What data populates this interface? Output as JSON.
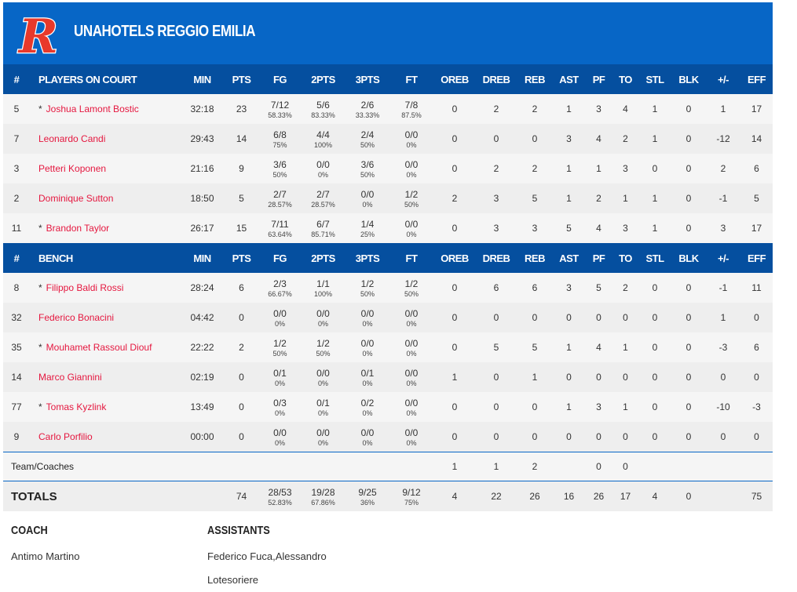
{
  "header": {
    "team_name": "UNAHOTELS REGGIO EMILIA",
    "logo_text": "R",
    "accent": "#0766c6",
    "header_bg": "#054f9f",
    "name_color": "#e5173f"
  },
  "columns": [
    "#",
    "PLAYERS ON COURT",
    "MIN",
    "PTS",
    "FG",
    "2PTS",
    "3PTS",
    "FT",
    "OREB",
    "DREB",
    "REB",
    "AST",
    "PF",
    "TO",
    "STL",
    "BLK",
    "+/-",
    "EFF"
  ],
  "bench_columns": [
    "#",
    "BENCH",
    "MIN",
    "PTS",
    "FG",
    "2PTS",
    "3PTS",
    "FT",
    "OREB",
    "DREB",
    "REB",
    "AST",
    "PF",
    "TO",
    "STL",
    "BLK",
    "+/-",
    "EFF"
  ],
  "starters": [
    {
      "num": "5",
      "starter": true,
      "name": "Joshua Lamont Bostic",
      "min": "32:18",
      "pts": "23",
      "fg": "7/12",
      "fg_pct": "58.33%",
      "p2": "5/6",
      "p2_pct": "83.33%",
      "p3": "2/6",
      "p3_pct": "33.33%",
      "ft": "7/8",
      "ft_pct": "87.5%",
      "oreb": "0",
      "dreb": "2",
      "reb": "2",
      "ast": "1",
      "pf": "3",
      "to": "4",
      "stl": "1",
      "blk": "0",
      "pm": "1",
      "eff": "17"
    },
    {
      "num": "7",
      "starter": false,
      "name": "Leonardo Candi",
      "min": "29:43",
      "pts": "14",
      "fg": "6/8",
      "fg_pct": "75%",
      "p2": "4/4",
      "p2_pct": "100%",
      "p3": "2/4",
      "p3_pct": "50%",
      "ft": "0/0",
      "ft_pct": "0%",
      "oreb": "0",
      "dreb": "0",
      "reb": "0",
      "ast": "3",
      "pf": "4",
      "to": "2",
      "stl": "1",
      "blk": "0",
      "pm": "-12",
      "eff": "14"
    },
    {
      "num": "3",
      "starter": false,
      "name": "Petteri Koponen",
      "min": "21:16",
      "pts": "9",
      "fg": "3/6",
      "fg_pct": "50%",
      "p2": "0/0",
      "p2_pct": "0%",
      "p3": "3/6",
      "p3_pct": "50%",
      "ft": "0/0",
      "ft_pct": "0%",
      "oreb": "0",
      "dreb": "2",
      "reb": "2",
      "ast": "1",
      "pf": "1",
      "to": "3",
      "stl": "0",
      "blk": "0",
      "pm": "2",
      "eff": "6"
    },
    {
      "num": "2",
      "starter": false,
      "name": "Dominique Sutton",
      "min": "18:50",
      "pts": "5",
      "fg": "2/7",
      "fg_pct": "28.57%",
      "p2": "2/7",
      "p2_pct": "28.57%",
      "p3": "0/0",
      "p3_pct": "0%",
      "ft": "1/2",
      "ft_pct": "50%",
      "oreb": "2",
      "dreb": "3",
      "reb": "5",
      "ast": "1",
      "pf": "2",
      "to": "1",
      "stl": "1",
      "blk": "0",
      "pm": "-1",
      "eff": "5"
    },
    {
      "num": "11",
      "starter": true,
      "name": "Brandon Taylor",
      "min": "26:17",
      "pts": "15",
      "fg": "7/11",
      "fg_pct": "63.64%",
      "p2": "6/7",
      "p2_pct": "85.71%",
      "p3": "1/4",
      "p3_pct": "25%",
      "ft": "0/0",
      "ft_pct": "0%",
      "oreb": "0",
      "dreb": "3",
      "reb": "3",
      "ast": "5",
      "pf": "4",
      "to": "3",
      "stl": "1",
      "blk": "0",
      "pm": "3",
      "eff": "17"
    }
  ],
  "bench": [
    {
      "num": "8",
      "starter": true,
      "name": "Filippo Baldi Rossi",
      "min": "28:24",
      "pts": "6",
      "fg": "2/3",
      "fg_pct": "66.67%",
      "p2": "1/1",
      "p2_pct": "100%",
      "p3": "1/2",
      "p3_pct": "50%",
      "ft": "1/2",
      "ft_pct": "50%",
      "oreb": "0",
      "dreb": "6",
      "reb": "6",
      "ast": "3",
      "pf": "5",
      "to": "2",
      "stl": "0",
      "blk": "0",
      "pm": "-1",
      "eff": "11"
    },
    {
      "num": "32",
      "starter": false,
      "name": "Federico Bonacini",
      "min": "04:42",
      "pts": "0",
      "fg": "0/0",
      "fg_pct": "0%",
      "p2": "0/0",
      "p2_pct": "0%",
      "p3": "0/0",
      "p3_pct": "0%",
      "ft": "0/0",
      "ft_pct": "0%",
      "oreb": "0",
      "dreb": "0",
      "reb": "0",
      "ast": "0",
      "pf": "0",
      "to": "0",
      "stl": "0",
      "blk": "0",
      "pm": "1",
      "eff": "0"
    },
    {
      "num": "35",
      "starter": true,
      "name": "Mouhamet Rassoul Diouf",
      "min": "22:22",
      "pts": "2",
      "fg": "1/2",
      "fg_pct": "50%",
      "p2": "1/2",
      "p2_pct": "50%",
      "p3": "0/0",
      "p3_pct": "0%",
      "ft": "0/0",
      "ft_pct": "0%",
      "oreb": "0",
      "dreb": "5",
      "reb": "5",
      "ast": "1",
      "pf": "4",
      "to": "1",
      "stl": "0",
      "blk": "0",
      "pm": "-3",
      "eff": "6"
    },
    {
      "num": "14",
      "starter": false,
      "name": "Marco Giannini",
      "min": "02:19",
      "pts": "0",
      "fg": "0/1",
      "fg_pct": "0%",
      "p2": "0/0",
      "p2_pct": "0%",
      "p3": "0/1",
      "p3_pct": "0%",
      "ft": "0/0",
      "ft_pct": "0%",
      "oreb": "1",
      "dreb": "0",
      "reb": "1",
      "ast": "0",
      "pf": "0",
      "to": "0",
      "stl": "0",
      "blk": "0",
      "pm": "0",
      "eff": "0"
    },
    {
      "num": "77",
      "starter": true,
      "name": "Tomas Kyzlink",
      "min": "13:49",
      "pts": "0",
      "fg": "0/3",
      "fg_pct": "0%",
      "p2": "0/1",
      "p2_pct": "0%",
      "p3": "0/2",
      "p3_pct": "0%",
      "ft": "0/0",
      "ft_pct": "0%",
      "oreb": "0",
      "dreb": "0",
      "reb": "0",
      "ast": "1",
      "pf": "3",
      "to": "1",
      "stl": "0",
      "blk": "0",
      "pm": "-10",
      "eff": "-3"
    },
    {
      "num": "9",
      "starter": false,
      "name": "Carlo Porfilio",
      "min": "00:00",
      "pts": "0",
      "fg": "0/0",
      "fg_pct": "0%",
      "p2": "0/0",
      "p2_pct": "0%",
      "p3": "0/0",
      "p3_pct": "0%",
      "ft": "0/0",
      "ft_pct": "0%",
      "oreb": "0",
      "dreb": "0",
      "reb": "0",
      "ast": "0",
      "pf": "0",
      "to": "0",
      "stl": "0",
      "blk": "0",
      "pm": "0",
      "eff": "0"
    }
  ],
  "team_row": {
    "label": "Team/Coaches",
    "oreb": "1",
    "dreb": "1",
    "reb": "2",
    "ast": "",
    "pf": "0",
    "to": "0",
    "stl": "",
    "blk": "",
    "pm": "",
    "eff": ""
  },
  "totals": {
    "label": "TOTALS",
    "min": "",
    "pts": "74",
    "fg": "28/53",
    "fg_pct": "52.83%",
    "p2": "19/28",
    "p2_pct": "67.86%",
    "p3": "9/25",
    "p3_pct": "36%",
    "ft": "9/12",
    "ft_pct": "75%",
    "oreb": "4",
    "dreb": "22",
    "reb": "26",
    "ast": "16",
    "pf": "26",
    "to": "17",
    "stl": "4",
    "blk": "0",
    "pm": "",
    "eff": "75"
  },
  "coach": {
    "label": "COACH",
    "name": "Antimo Martino"
  },
  "assistants": {
    "label": "ASSISTANTS",
    "names": "Federico Fuca,Alessandro Lotesoriere"
  }
}
